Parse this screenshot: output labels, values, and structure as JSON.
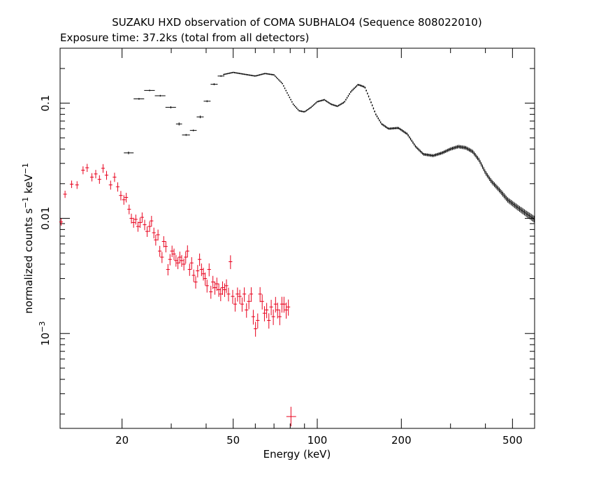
{
  "chart_data": {
    "type": "scatter",
    "title": "SUZAKU HXD observation of COMA SUBHALO4 (Sequence 808022010)",
    "subtitle": "Exposure time: 37.2ks (total from all detectors)",
    "xlabel": "Energy (keV)",
    "ylabel_base": "normalized counts s",
    "ylabel_exp1": "−1",
    "ylabel_mid": " keV",
    "ylabel_exp2": "−1",
    "x_scale": "log",
    "y_scale": "log",
    "xlim": [
      12,
      600
    ],
    "ylim": [
      0.00015,
      0.3
    ],
    "x_ticks_major": [
      {
        "value": 20,
        "label": "20"
      },
      {
        "value": 50,
        "label": "50"
      },
      {
        "value": 100,
        "label": "100"
      },
      {
        "value": 200,
        "label": "200"
      },
      {
        "value": 500,
        "label": "500"
      }
    ],
    "y_ticks_major": [
      {
        "value": 0.1,
        "label": "0.1"
      },
      {
        "value": 0.01,
        "label": "0.01"
      },
      {
        "value": 0.001,
        "label": "10",
        "exp": "−3"
      }
    ],
    "grid": false,
    "legend": "none",
    "series": [
      {
        "color": "#000000",
        "binned_points": [
          {
            "x": 21.1,
            "xerr": [
              20.3,
              22.0
            ],
            "y": 0.037,
            "yerr": 0.001
          },
          {
            "x": 23.0,
            "xerr": [
              22.0,
              24.0
            ],
            "y": 0.109,
            "yerr": 0.002
          },
          {
            "x": 25.1,
            "xerr": [
              24.0,
              26.2
            ],
            "y": 0.129,
            "yerr": 0.002
          },
          {
            "x": 27.4,
            "xerr": [
              26.2,
              28.6
            ],
            "y": 0.116,
            "yerr": 0.002
          },
          {
            "x": 29.9,
            "xerr": [
              28.6,
              31.2
            ],
            "y": 0.092,
            "yerr": 0.002
          },
          {
            "x": 32.0,
            "xerr": [
              31.2,
              32.8
            ],
            "y": 0.066,
            "yerr": 0.002
          },
          {
            "x": 33.9,
            "xerr": [
              32.8,
              35.0
            ],
            "y": 0.053,
            "yerr": 0.001
          },
          {
            "x": 36.0,
            "xerr": [
              35.0,
              37.0
            ],
            "y": 0.058,
            "yerr": 0.001
          },
          {
            "x": 38.1,
            "xerr": [
              37.0,
              39.2
            ],
            "y": 0.076,
            "yerr": 0.002
          },
          {
            "x": 40.3,
            "xerr": [
              39.2,
              41.5
            ],
            "y": 0.104,
            "yerr": 0.002
          },
          {
            "x": 42.7,
            "xerr": [
              41.5,
              44.0
            ],
            "y": 0.146,
            "yerr": 0.003
          },
          {
            "x": 45.2,
            "xerr": [
              44.0,
              46.5
            ],
            "y": 0.172,
            "yerr": 0.003
          }
        ],
        "continuum": [
          [
            46,
            0.177
          ],
          [
            50,
            0.185
          ],
          [
            55,
            0.178
          ],
          [
            60,
            0.172
          ],
          [
            65,
            0.181
          ],
          [
            70,
            0.176
          ],
          [
            75,
            0.148
          ],
          [
            78,
            0.123
          ],
          [
            82,
            0.098
          ],
          [
            86,
            0.086
          ],
          [
            90,
            0.084
          ],
          [
            95,
            0.092
          ],
          [
            100,
            0.103
          ],
          [
            106,
            0.107
          ],
          [
            112,
            0.098
          ],
          [
            118,
            0.094
          ],
          [
            125,
            0.102
          ],
          [
            132,
            0.126
          ],
          [
            140,
            0.145
          ],
          [
            148,
            0.138
          ],
          [
            155,
            0.105
          ],
          [
            162,
            0.08
          ],
          [
            170,
            0.066
          ],
          [
            180,
            0.06
          ],
          [
            195,
            0.061
          ],
          [
            210,
            0.054
          ],
          [
            225,
            0.042
          ],
          [
            240,
            0.036
          ],
          [
            260,
            0.035
          ],
          [
            280,
            0.037
          ],
          [
            300,
            0.04
          ],
          [
            320,
            0.042
          ],
          [
            340,
            0.041
          ],
          [
            360,
            0.038
          ],
          [
            380,
            0.032
          ],
          [
            400,
            0.025
          ],
          [
            420,
            0.021
          ],
          [
            450,
            0.0175
          ],
          [
            480,
            0.0145
          ],
          [
            520,
            0.0125
          ],
          [
            560,
            0.011
          ],
          [
            600,
            0.0098
          ]
        ]
      },
      {
        "color": "#e8001c",
        "points": [
          [
            12.1,
            0.0093
          ],
          [
            12.5,
            0.0162
          ],
          [
            13.2,
            0.0198
          ],
          [
            13.8,
            0.0195
          ],
          [
            14.5,
            0.0262
          ],
          [
            15.0,
            0.0275
          ],
          [
            15.6,
            0.0228
          ],
          [
            16.1,
            0.0243
          ],
          [
            16.6,
            0.0218
          ],
          [
            17.1,
            0.0272
          ],
          [
            17.6,
            0.0237
          ],
          [
            18.2,
            0.0195
          ],
          [
            18.8,
            0.0228
          ],
          [
            19.3,
            0.0188
          ],
          [
            19.8,
            0.0158
          ],
          [
            20.3,
            0.0145
          ],
          [
            20.7,
            0.0152
          ],
          [
            21.2,
            0.012
          ],
          [
            21.6,
            0.01
          ],
          [
            22.0,
            0.0092
          ],
          [
            22.4,
            0.0098
          ],
          [
            22.8,
            0.0085
          ],
          [
            23.2,
            0.0092
          ],
          [
            23.6,
            0.0102
          ],
          [
            24.1,
            0.0088
          ],
          [
            24.6,
            0.0077
          ],
          [
            25.1,
            0.0085
          ],
          [
            25.5,
            0.0095
          ],
          [
            26.0,
            0.0075
          ],
          [
            26.4,
            0.0065
          ],
          [
            26.9,
            0.0072
          ],
          [
            27.3,
            0.0052
          ],
          [
            27.8,
            0.0046
          ],
          [
            28.2,
            0.0063
          ],
          [
            28.7,
            0.0057
          ],
          [
            29.2,
            0.0036
          ],
          [
            29.7,
            0.0044
          ],
          [
            30.2,
            0.0052
          ],
          [
            30.7,
            0.0049
          ],
          [
            31.2,
            0.0043
          ],
          [
            31.7,
            0.0041
          ],
          [
            32.2,
            0.0046
          ],
          [
            32.7,
            0.0043
          ],
          [
            33.3,
            0.004
          ],
          [
            33.8,
            0.0046
          ],
          [
            34.3,
            0.0052
          ],
          [
            34.9,
            0.0036
          ],
          [
            35.5,
            0.0041
          ],
          [
            36.1,
            0.0032
          ],
          [
            36.7,
            0.0028
          ],
          [
            37.3,
            0.0035
          ],
          [
            37.9,
            0.0044
          ],
          [
            38.5,
            0.0036
          ],
          [
            39.1,
            0.0033
          ],
          [
            39.7,
            0.003
          ],
          [
            40.3,
            0.0026
          ],
          [
            41.0,
            0.0036
          ],
          [
            41.6,
            0.0023
          ],
          [
            42.3,
            0.0028
          ],
          [
            43.0,
            0.0025
          ],
          [
            43.7,
            0.0027
          ],
          [
            44.4,
            0.0024
          ],
          [
            45.1,
            0.0022
          ],
          [
            45.8,
            0.0025
          ],
          [
            46.6,
            0.0024
          ],
          [
            47.3,
            0.0026
          ],
          [
            48.1,
            0.0022
          ],
          [
            48.9,
            0.0042
          ],
          [
            49.8,
            0.0021
          ],
          [
            50.8,
            0.0018
          ],
          [
            51.8,
            0.0022
          ],
          [
            52.8,
            0.0021
          ],
          [
            53.8,
            0.0018
          ],
          [
            54.8,
            0.0022
          ],
          [
            55.8,
            0.0016
          ],
          [
            56.9,
            0.0019
          ],
          [
            58.0,
            0.0022
          ],
          [
            59.0,
            0.0014
          ],
          [
            60.1,
            0.0011
          ],
          [
            61.2,
            0.0013
          ],
          [
            62.4,
            0.0022
          ],
          [
            63.5,
            0.0019
          ],
          [
            64.7,
            0.0015
          ],
          [
            65.9,
            0.0016
          ],
          [
            67.1,
            0.0013
          ],
          [
            68.4,
            0.0017
          ],
          [
            69.6,
            0.0014
          ],
          [
            70.9,
            0.0018
          ],
          [
            72.1,
            0.0016
          ],
          [
            73.4,
            0.0014
          ],
          [
            74.7,
            0.0018
          ],
          [
            76.0,
            0.0018
          ],
          [
            77.4,
            0.0016
          ],
          [
            78.8,
            0.0017
          ]
        ],
        "outlier": {
          "x": 80.5,
          "xerr": [
            77.5,
            84.0
          ],
          "y": 0.00019
        }
      }
    ]
  }
}
